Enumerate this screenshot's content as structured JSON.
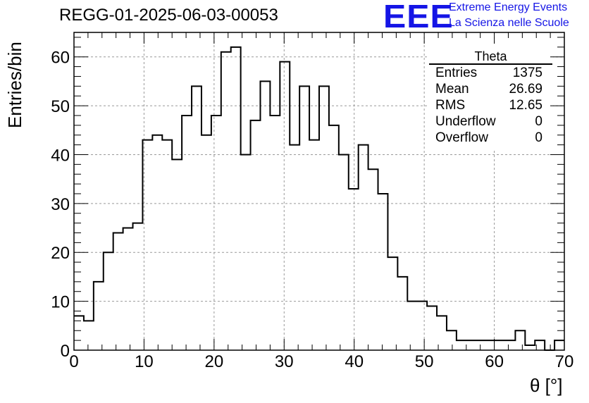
{
  "title": "REGG-01-2025-06-03-00053",
  "logo": {
    "text": "EEE",
    "line1": "Extreme Energy Events",
    "line2": "La Scienza nelle Scuole",
    "color": "#1515e6"
  },
  "stats": {
    "title": "Theta",
    "rows": [
      {
        "key": "Entries",
        "value": "1375"
      },
      {
        "key": "Mean",
        "value": "26.69"
      },
      {
        "key": "RMS",
        "value": "12.65"
      },
      {
        "key": "Underflow",
        "value": "0"
      },
      {
        "key": "Overflow",
        "value": "0"
      }
    ]
  },
  "chart_data": {
    "type": "histogram",
    "title": "REGG-01-2025-06-03-00053",
    "xlabel": "θ [°]",
    "ylabel": "Entries/bin",
    "xlim": [
      0,
      70
    ],
    "ylim": [
      0,
      65
    ],
    "bin_width": 1.4,
    "bin_start": 0,
    "values": [
      7,
      6,
      14,
      20,
      24,
      25,
      26,
      43,
      44,
      43,
      39,
      48,
      54,
      44,
      48,
      61,
      62,
      40,
      47,
      55,
      48,
      59,
      42,
      54,
      43,
      54,
      46,
      40,
      33,
      42,
      37,
      32,
      19,
      15,
      10,
      10,
      9,
      7,
      4,
      2,
      2,
      2,
      2,
      2,
      2,
      4,
      1,
      2,
      0,
      2
    ],
    "xticks": [
      0,
      10,
      20,
      30,
      40,
      50,
      60,
      70
    ],
    "yticks": [
      0,
      10,
      20,
      30,
      40,
      50,
      60
    ],
    "grid": true,
    "line_color": "#000000"
  }
}
